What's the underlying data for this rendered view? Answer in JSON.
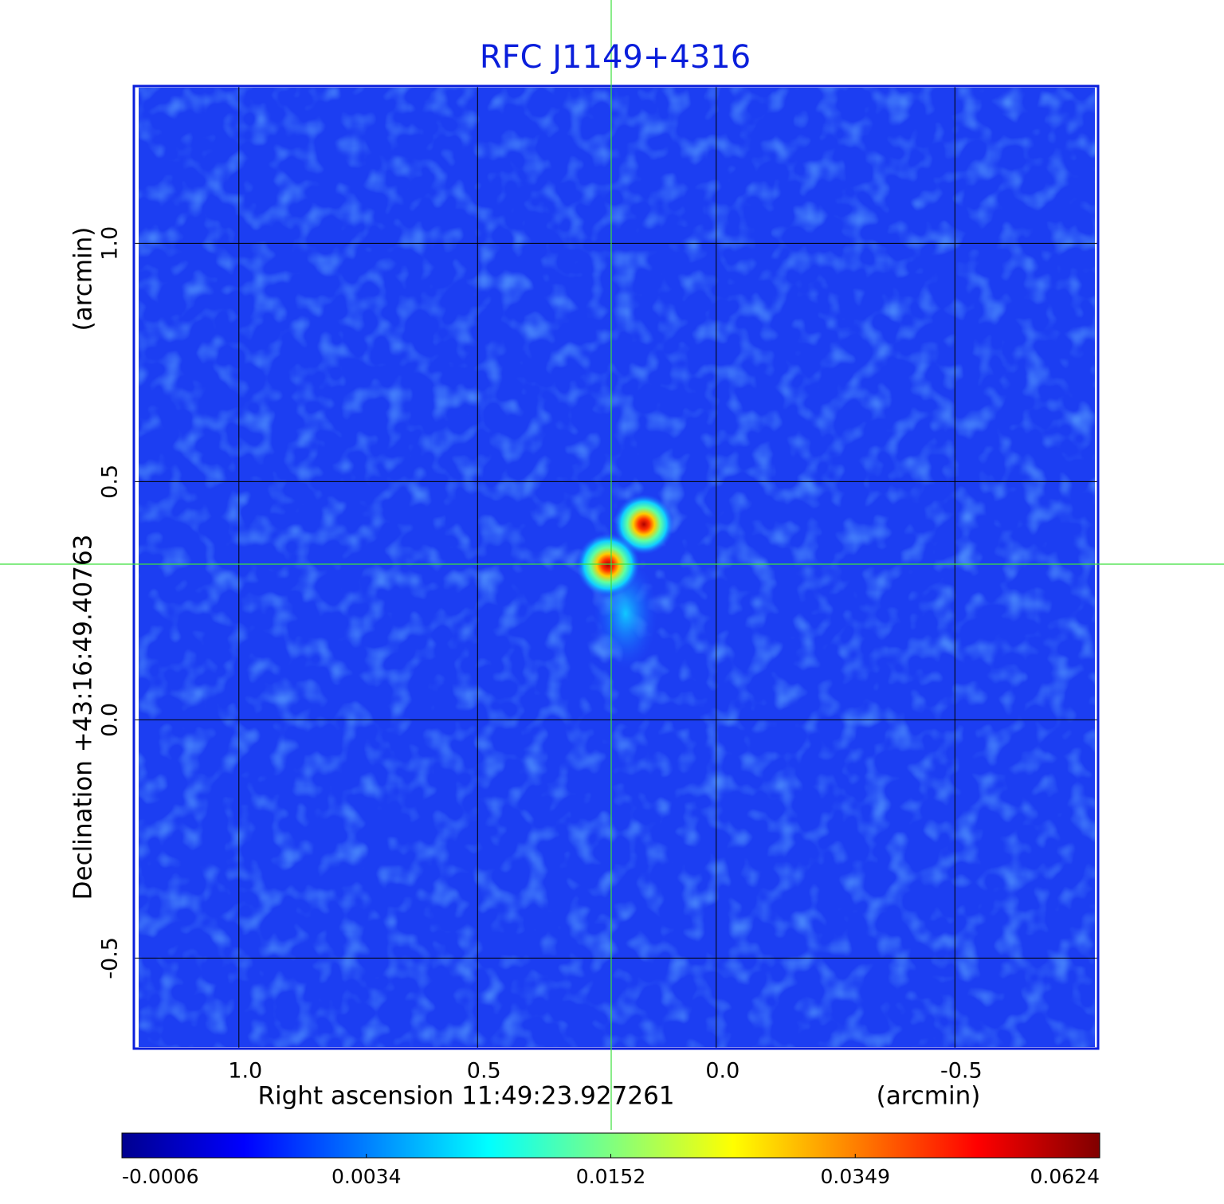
{
  "chart_data": {
    "type": "image",
    "title": "RFC J1149+4316",
    "x_label": "Right ascension  11:49:23.927261",
    "x_unit": "(arcmin)",
    "y_label": "Declination  +43:16:49.40763",
    "y_unit": "(arcmin)",
    "xlim": [
      1.22,
      -0.8
    ],
    "ylim": [
      -0.69,
      1.33
    ],
    "xticks": [
      {
        "value": 1,
        "label": "1.0"
      },
      0.5,
      {
        "value": 0,
        "label": "0.0"
      },
      -0.5
    ],
    "yticks": [
      -0.5,
      {
        "value": 0,
        "label": "0.0"
      },
      0.5,
      {
        "value": 1,
        "label": "1.0"
      }
    ],
    "grid": true,
    "colorbar_ticks": [
      -0.0006,
      0.0034,
      0.0152,
      0.0349,
      0.0624
    ]
  }
}
